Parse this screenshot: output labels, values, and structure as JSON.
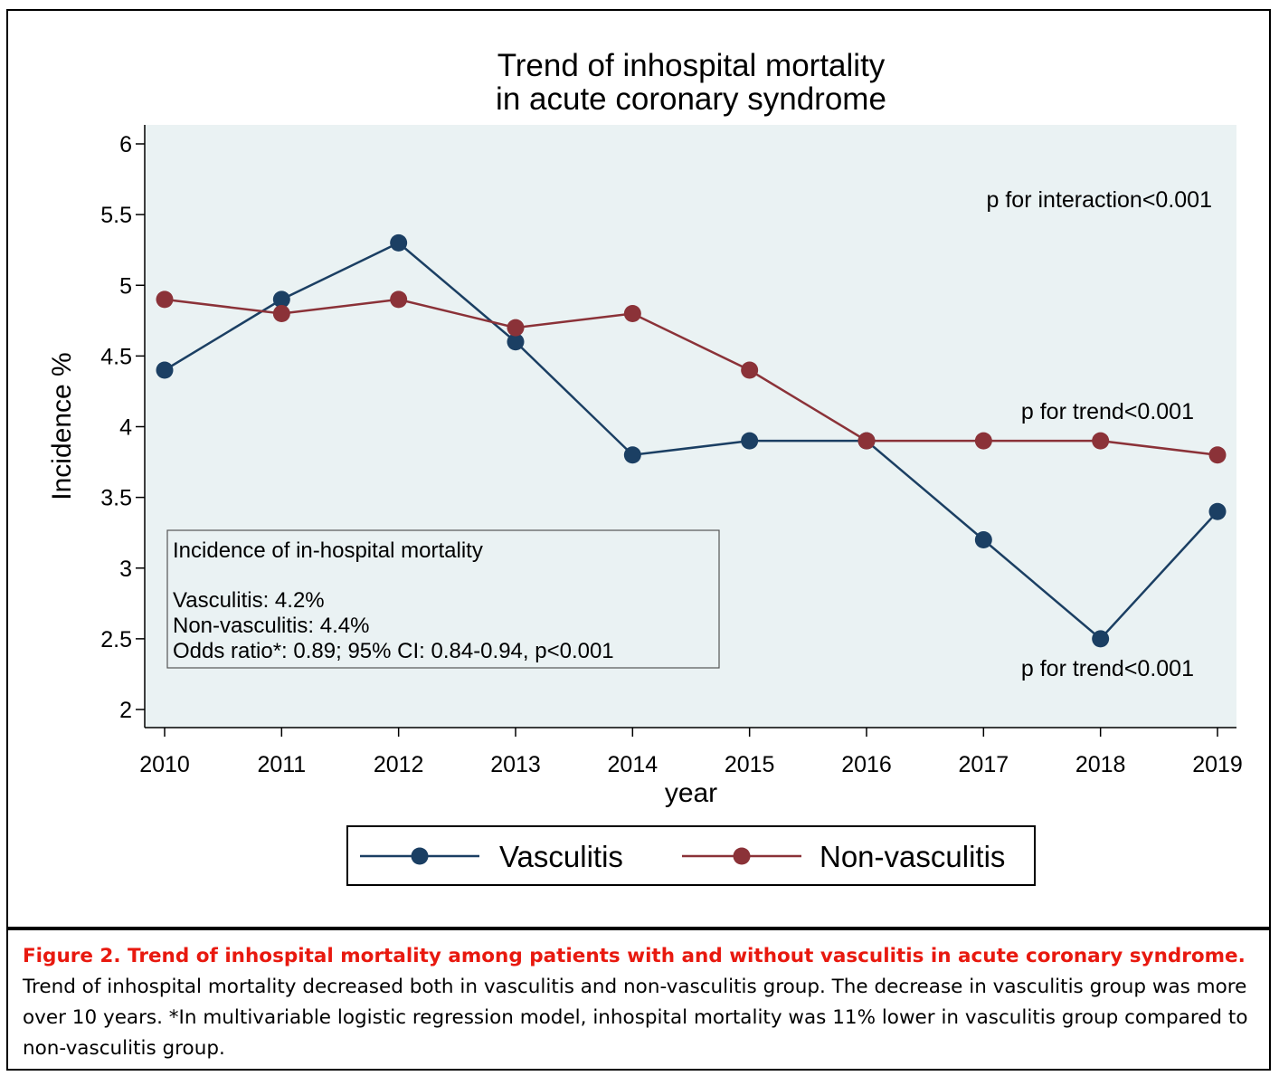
{
  "chart_data": {
    "type": "line",
    "title": [
      "Trend of inhospital mortality",
      "in acute coronary syndrome"
    ],
    "xlabel": "year",
    "ylabel": "Incidence %",
    "x": [
      2010,
      2011,
      2012,
      2013,
      2014,
      2015,
      2016,
      2017,
      2018,
      2019
    ],
    "ylim": [
      2,
      6
    ],
    "yticks": [
      "2",
      "2.5",
      "3",
      "3.5",
      "4",
      "4.5",
      "5",
      "5.5",
      "6"
    ],
    "grid": false,
    "legend_position": "bottom",
    "series": [
      {
        "name": "Vasculitis",
        "color": "#1b3f63",
        "values": [
          4.4,
          4.9,
          5.3,
          4.6,
          3.8,
          3.9,
          3.9,
          3.2,
          2.5,
          3.4
        ]
      },
      {
        "name": "Non-vasculitis",
        "color": "#8b3238",
        "values": [
          4.9,
          4.8,
          4.9,
          4.7,
          4.8,
          4.4,
          3.9,
          3.9,
          3.9,
          3.8
        ]
      }
    ],
    "annotations": {
      "interaction": "p for interaction<0.001",
      "trend_nonvasculitis": "p for trend<0.001",
      "trend_vasculitis": "p for trend<0.001"
    },
    "inset_box": {
      "title": "Incidence of in-hospital mortality",
      "line1": "Vasculitis: 4.2%",
      "line2": "Non-vasculitis: 4.4%",
      "line3": "Odds ratio*: 0.89; 95% CI: 0.84-0.94, p<0.001"
    }
  },
  "caption": {
    "title": "Figure 2. Trend of inhospital mortality among patients with and without vasculitis in acute coronary syndrome.",
    "body": "Trend of inhospital mortality decreased both in vasculitis and non-vasculitis group. The decrease in vasculitis group was more over 10 years. *In multivariable logistic regression model, inhospital mortality was 11% lower in vasculitis group compared to non-vasculitis group."
  }
}
